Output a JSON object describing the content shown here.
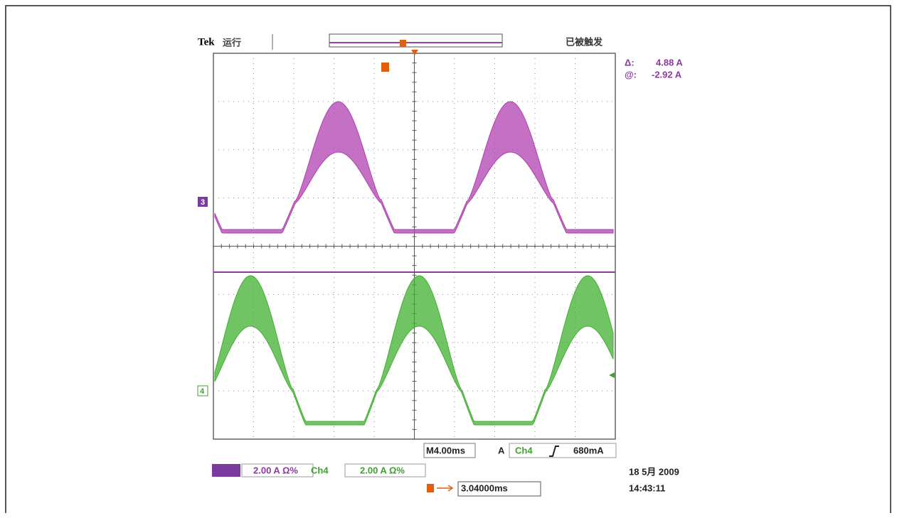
{
  "header": {
    "brand": "Tek",
    "status": "运行",
    "trigger_state": "已被触发"
  },
  "cursor": {
    "delta_label": "Δ:",
    "delta": "4.88 A",
    "at_label": "@:",
    "at": "-2.92 A"
  },
  "markers": {
    "ch3": "3",
    "ch4": "4"
  },
  "footer": {
    "timebase": "M4.00ms",
    "trigger_source_label": "A",
    "trigger_channel": "Ch4",
    "trigger_level": "680mA",
    "ch3_scale": "2.00 A Ω%",
    "ch4_label": "Ch4",
    "ch4_scale": "2.00 A Ω%",
    "position": "3.04000ms",
    "date": "18 5月 2009",
    "time": "14:43:11"
  }
}
